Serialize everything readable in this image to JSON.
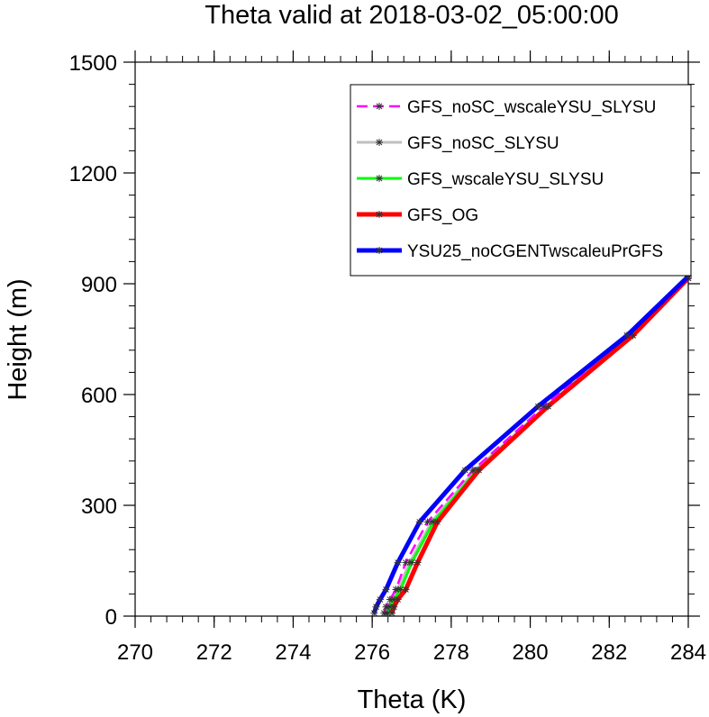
{
  "chart_data": {
    "type": "line",
    "title": "Theta valid at 2018-03-02_05:00:00",
    "xlabel": "Theta (K)",
    "ylabel": "Height (m)",
    "xlim": [
      270,
      284
    ],
    "ylim": [
      0,
      1500
    ],
    "xticks": [
      "270",
      "272",
      "274",
      "276",
      "278",
      "280",
      "282",
      "284"
    ],
    "yticks": [
      "0",
      "300",
      "600",
      "900",
      "1200",
      "1500"
    ],
    "xtick_values": [
      270,
      272,
      274,
      276,
      278,
      280,
      282,
      284
    ],
    "ytick_values": [
      0,
      300,
      600,
      900,
      1200,
      1500
    ],
    "legend_position": "top-right",
    "grid": false,
    "series": [
      {
        "name": "GFS_noSC_wscaleYSU_SLYSU",
        "color": "#ff00ff",
        "dash": true,
        "points": [
          [
            276.3,
            8
          ],
          [
            276.35,
            25
          ],
          [
            276.45,
            45
          ],
          [
            276.6,
            72
          ],
          [
            276.85,
            145
          ],
          [
            277.4,
            255
          ],
          [
            278.55,
            395
          ],
          [
            280.35,
            568
          ],
          [
            282.45,
            760
          ],
          [
            284.0,
            920
          ]
        ]
      },
      {
        "name": "GFS_noSC_SLYSU",
        "color": "#c0c0c0",
        "dash": false,
        "points": [
          [
            276.35,
            8
          ],
          [
            276.4,
            25
          ],
          [
            276.5,
            45
          ],
          [
            276.65,
            72
          ],
          [
            276.95,
            145
          ],
          [
            277.5,
            255
          ],
          [
            278.6,
            395
          ],
          [
            280.4,
            568
          ],
          [
            282.5,
            760
          ],
          [
            284.0,
            920
          ]
        ]
      },
      {
        "name": "GFS_wscaleYSU_SLYSU",
        "color": "#00ff00",
        "dash": false,
        "points": [
          [
            276.4,
            8
          ],
          [
            276.45,
            25
          ],
          [
            276.55,
            45
          ],
          [
            276.72,
            72
          ],
          [
            277.0,
            145
          ],
          [
            277.55,
            255
          ],
          [
            278.65,
            395
          ],
          [
            280.45,
            568
          ],
          [
            282.6,
            760
          ],
          [
            284.0,
            915
          ]
        ]
      },
      {
        "name": "GFS_OG",
        "color": "#ff0000",
        "dash": false,
        "points": [
          [
            276.5,
            8
          ],
          [
            276.55,
            25
          ],
          [
            276.65,
            45
          ],
          [
            276.85,
            72
          ],
          [
            277.15,
            145
          ],
          [
            277.65,
            255
          ],
          [
            278.7,
            395
          ],
          [
            280.45,
            568
          ],
          [
            282.6,
            760
          ],
          [
            284.0,
            915
          ]
        ]
      },
      {
        "name": "YSU25_noCGENTwscaleuPrGFS",
        "color": "#0000ff",
        "dash": false,
        "points": [
          [
            276.05,
            8
          ],
          [
            276.1,
            25
          ],
          [
            276.2,
            45
          ],
          [
            276.35,
            72
          ],
          [
            276.65,
            145
          ],
          [
            277.2,
            255
          ],
          [
            278.35,
            395
          ],
          [
            280.2,
            568
          ],
          [
            282.45,
            760
          ],
          [
            284.0,
            920
          ]
        ]
      }
    ]
  }
}
